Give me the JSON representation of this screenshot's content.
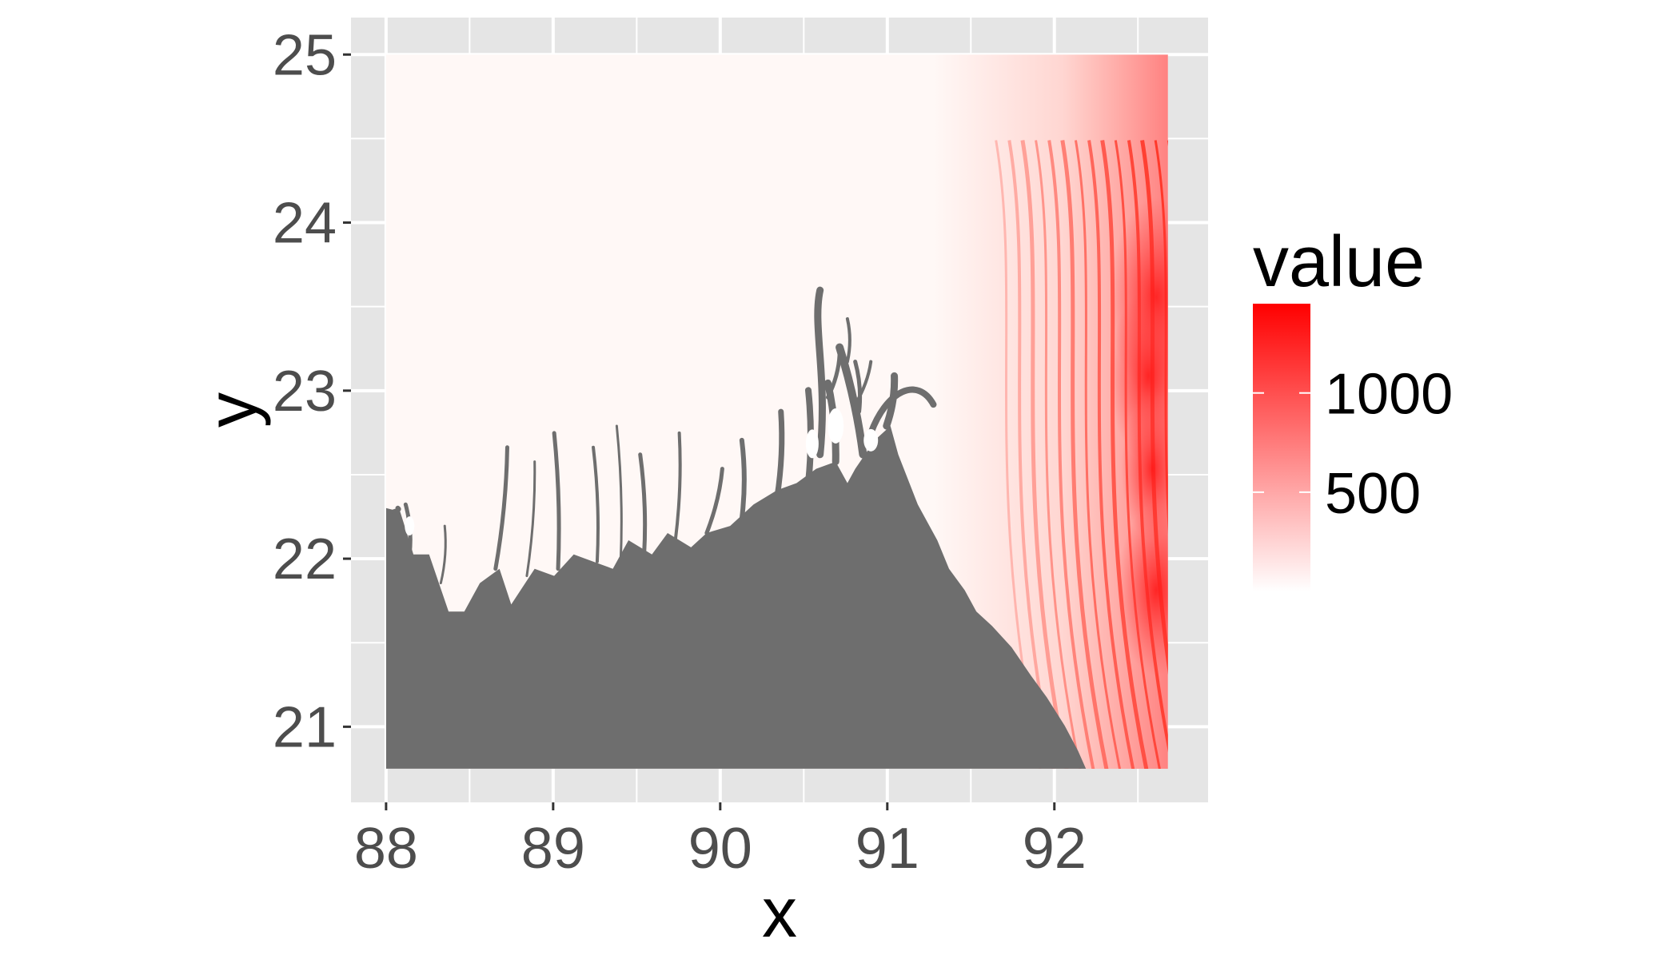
{
  "chart_data": {
    "type": "heatmap",
    "title": "",
    "xlabel": "x",
    "ylabel": "y",
    "xlim": [
      87.79,
      92.92
    ],
    "ylim": [
      20.55,
      25.22
    ],
    "raster_extent": {
      "x": [
        88.0,
        92.68
      ],
      "y": [
        20.75,
        25.0
      ]
    },
    "x_breaks": [
      88,
      89,
      90,
      91,
      92
    ],
    "x_tick_labels": [
      "88",
      "89",
      "90",
      "91",
      "92"
    ],
    "y_breaks": [
      21,
      22,
      23,
      24,
      25
    ],
    "y_tick_labels": [
      "21",
      "22",
      "23",
      "24",
      "25"
    ],
    "grid": true,
    "na_color": "#6e6e6e",
    "panel_background": "#e5e5e5",
    "legend": {
      "title": "value",
      "position": "right",
      "breaks": [
        500,
        1000
      ],
      "labels": [
        "500",
        "1000"
      ],
      "limits": [
        0,
        1450
      ],
      "low_color": "#ffffff",
      "high_color": "#ff0000"
    }
  }
}
